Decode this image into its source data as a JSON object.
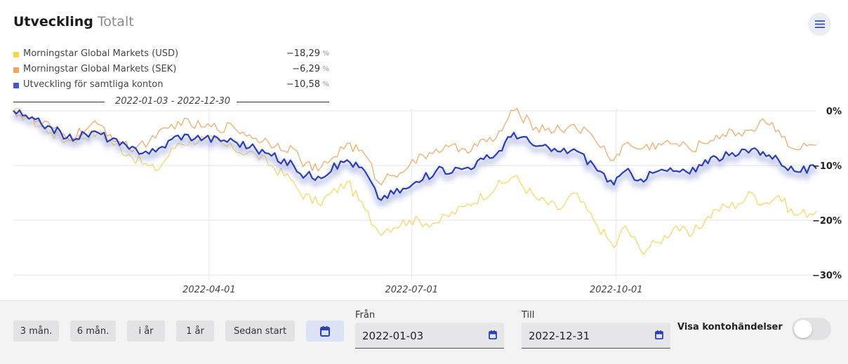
{
  "header": {
    "title": "Utveckling",
    "subtitle": "Totalt",
    "menu_icon": "hamburger-menu-icon"
  },
  "legend": [
    {
      "name": "Morningstar Global Markets (USD)",
      "value": "−18,29",
      "unit": "%",
      "color": "#f6d54a"
    },
    {
      "name": "Morningstar Global Markets (SEK)",
      "value": "−6,29",
      "unit": "%",
      "color": "#f0a662"
    },
    {
      "name": "Utveckling för samtliga konton",
      "value": "−10,58",
      "unit": "%",
      "color": "#4657c9"
    }
  ],
  "date_range": "2022-01-03 - 2022-12-30",
  "chart_data": {
    "type": "line",
    "x_range": [
      "2022-01-03",
      "2022-12-30"
    ],
    "x_ticks": [
      "2022-04-01",
      "2022-07-01",
      "2022-10-01"
    ],
    "y_ticks": [
      "0%",
      "−10%",
      "−20%",
      "−30%"
    ],
    "y_tick_values": [
      0,
      -10,
      -20,
      -30
    ],
    "ylim": [
      -31,
      1
    ],
    "grid": true,
    "series": [
      {
        "name": "Morningstar Global Markets (USD)",
        "color": "#f7d55c",
        "points": [
          [
            "2022-01-03",
            0
          ],
          [
            "2022-01-10",
            -1.5
          ],
          [
            "2022-01-20",
            -4
          ],
          [
            "2022-01-27",
            -5.5
          ],
          [
            "2022-02-10",
            -4
          ],
          [
            "2022-02-24",
            -8
          ],
          [
            "2022-03-08",
            -11
          ],
          [
            "2022-03-18",
            -6
          ],
          [
            "2022-03-30",
            -5
          ],
          [
            "2022-04-12",
            -7
          ],
          [
            "2022-04-22",
            -8
          ],
          [
            "2022-05-09",
            -13
          ],
          [
            "2022-05-12",
            -15
          ],
          [
            "2022-05-20",
            -17
          ],
          [
            "2022-06-02",
            -13
          ],
          [
            "2022-06-10",
            -18
          ],
          [
            "2022-06-16",
            -22
          ],
          [
            "2022-06-30",
            -20
          ],
          [
            "2022-07-12",
            -20.5
          ],
          [
            "2022-07-25",
            -17.5
          ],
          [
            "2022-08-08",
            -14
          ],
          [
            "2022-08-16",
            -12
          ],
          [
            "2022-08-26",
            -16
          ],
          [
            "2022-09-06",
            -18
          ],
          [
            "2022-09-12",
            -15
          ],
          [
            "2022-09-21",
            -20
          ],
          [
            "2022-09-30",
            -25
          ],
          [
            "2022-10-05",
            -21
          ],
          [
            "2022-10-12",
            -25.5
          ],
          [
            "2022-10-20",
            -24
          ],
          [
            "2022-10-28",
            -21
          ],
          [
            "2022-11-03",
            -23
          ],
          [
            "2022-11-10",
            -20
          ],
          [
            "2022-11-15",
            -18
          ],
          [
            "2022-11-25",
            -17
          ],
          [
            "2022-12-01",
            -15
          ],
          [
            "2022-12-06",
            -17
          ],
          [
            "2022-12-13",
            -15.5
          ],
          [
            "2022-12-20",
            -19
          ],
          [
            "2022-12-30",
            -18.29
          ]
        ]
      },
      {
        "name": "Morningstar Global Markets (SEK)",
        "color": "#f0a662",
        "points": [
          [
            "2022-01-03",
            0
          ],
          [
            "2022-01-10",
            -1.5
          ],
          [
            "2022-01-20",
            -3
          ],
          [
            "2022-01-27",
            -5
          ],
          [
            "2022-02-10",
            -2.5
          ],
          [
            "2022-02-24",
            -7
          ],
          [
            "2022-03-08",
            -5
          ],
          [
            "2022-03-18",
            -2
          ],
          [
            "2022-03-30",
            -3
          ],
          [
            "2022-04-12",
            -3
          ],
          [
            "2022-04-22",
            -5
          ],
          [
            "2022-05-09",
            -7
          ],
          [
            "2022-05-12",
            -9
          ],
          [
            "2022-05-20",
            -11
          ],
          [
            "2022-06-02",
            -6
          ],
          [
            "2022-06-10",
            -8
          ],
          [
            "2022-06-16",
            -13
          ],
          [
            "2022-06-30",
            -10
          ],
          [
            "2022-07-12",
            -7
          ],
          [
            "2022-07-25",
            -7
          ],
          [
            "2022-08-08",
            -5
          ],
          [
            "2022-08-16",
            0
          ],
          [
            "2022-08-26",
            -3
          ],
          [
            "2022-09-06",
            -3.5
          ],
          [
            "2022-09-12",
            -2.5
          ],
          [
            "2022-09-21",
            -5
          ],
          [
            "2022-09-30",
            -9
          ],
          [
            "2022-10-05",
            -6
          ],
          [
            "2022-10-12",
            -7
          ],
          [
            "2022-10-20",
            -6
          ],
          [
            "2022-10-28",
            -6
          ],
          [
            "2022-11-03",
            -7
          ],
          [
            "2022-11-10",
            -6
          ],
          [
            "2022-11-15",
            -4.5
          ],
          [
            "2022-11-25",
            -4
          ],
          [
            "2022-12-01",
            -3.5
          ],
          [
            "2022-12-06",
            -1.5
          ],
          [
            "2022-12-13",
            -3.5
          ],
          [
            "2022-12-20",
            -7
          ],
          [
            "2022-12-30",
            -6.29
          ]
        ]
      },
      {
        "name": "Utveckling för samtliga konton",
        "color": "#2b3fb8",
        "points": [
          [
            "2022-01-03",
            0
          ],
          [
            "2022-01-10",
            -1.5
          ],
          [
            "2022-01-20",
            -3
          ],
          [
            "2022-01-27",
            -5
          ],
          [
            "2022-02-10",
            -4
          ],
          [
            "2022-02-24",
            -7
          ],
          [
            "2022-03-08",
            -7.5
          ],
          [
            "2022-03-18",
            -4.5
          ],
          [
            "2022-03-30",
            -5
          ],
          [
            "2022-04-12",
            -5.5
          ],
          [
            "2022-04-22",
            -7
          ],
          [
            "2022-05-09",
            -10
          ],
          [
            "2022-05-12",
            -11.5
          ],
          [
            "2022-05-20",
            -12
          ],
          [
            "2022-06-02",
            -9
          ],
          [
            "2022-06-10",
            -11
          ],
          [
            "2022-06-16",
            -16
          ],
          [
            "2022-06-30",
            -14
          ],
          [
            "2022-07-12",
            -11
          ],
          [
            "2022-07-25",
            -10.5
          ],
          [
            "2022-08-08",
            -8
          ],
          [
            "2022-08-16",
            -4
          ],
          [
            "2022-08-26",
            -6.5
          ],
          [
            "2022-09-06",
            -7.5
          ],
          [
            "2022-09-12",
            -7
          ],
          [
            "2022-09-21",
            -10
          ],
          [
            "2022-09-30",
            -13.5
          ],
          [
            "2022-10-05",
            -11
          ],
          [
            "2022-10-12",
            -12.5
          ],
          [
            "2022-10-20",
            -11
          ],
          [
            "2022-10-28",
            -11
          ],
          [
            "2022-11-03",
            -11.5
          ],
          [
            "2022-11-10",
            -9
          ],
          [
            "2022-11-15",
            -8.5
          ],
          [
            "2022-11-25",
            -8
          ],
          [
            "2022-12-01",
            -7
          ],
          [
            "2022-12-06",
            -7.5
          ],
          [
            "2022-12-13",
            -9
          ],
          [
            "2022-12-20",
            -11
          ],
          [
            "2022-12-30",
            -10.58
          ]
        ]
      }
    ]
  },
  "controls": {
    "periods": [
      "3 mån.",
      "6 mån.",
      "i år",
      "1 år",
      "Sedan start"
    ],
    "calendar_icon": "calendar-icon",
    "from_label": "Från",
    "from_value": "2022-01-03",
    "to_label": "Till",
    "to_value": "2022-12-31",
    "toggle_label": "Visa kontohändelser",
    "toggle_on": false
  }
}
